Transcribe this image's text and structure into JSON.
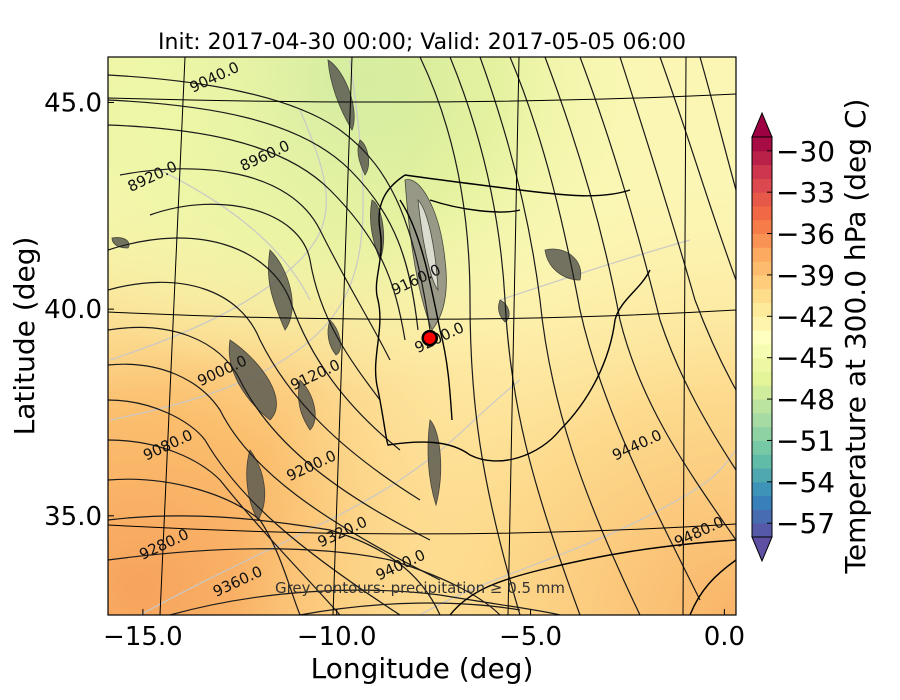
{
  "chart_data": {
    "type": "heatmap",
    "title": "Init: 2017-04-30 00:00; Valid: 2017-05-05 06:00",
    "xlabel": "Longitude (deg)",
    "ylabel": "Latitude (deg)",
    "xlim": [
      -15.9,
      0.3
    ],
    "ylim": [
      32.6,
      46.1
    ],
    "x_ticks": [
      -15.0,
      -10.0,
      -5.0,
      0.0
    ],
    "x_tick_labels": [
      "−15.0",
      "−10.0",
      "−5.0",
      "0.0"
    ],
    "y_ticks": [
      35.0,
      40.0,
      45.0
    ],
    "y_tick_labels": [
      "35.0",
      "40.0",
      "45.0"
    ],
    "colorbar": {
      "label": "Temperature at 300.0 hPa (deg C)",
      "min": -58,
      "max": -29,
      "extend": "both",
      "ticks": [
        -30,
        -33,
        -36,
        -39,
        -42,
        -45,
        -48,
        -51,
        -54,
        -57
      ],
      "tick_labels": [
        "−30",
        "−33",
        "−36",
        "−39",
        "−42",
        "−45",
        "−48",
        "−51",
        "−54",
        "−57"
      ],
      "colors": [
        "#5e4fa2",
        "#3288bd",
        "#66c2a5",
        "#abdda4",
        "#e6f598",
        "#ffffbf",
        "#fee08b",
        "#fdae61",
        "#f46d43",
        "#d53e4f",
        "#9e0142"
      ]
    },
    "contour_labels": [
      {
        "text": "9040.0",
        "lon": -13.1,
        "lat": 45.5
      },
      {
        "text": "8960.0",
        "lon": -11.8,
        "lat": 43.6
      },
      {
        "text": "8920.0",
        "lon": -14.7,
        "lat": 43.1
      },
      {
        "text": "9160.0",
        "lon": -7.9,
        "lat": 40.6
      },
      {
        "text": "9000.0",
        "lon": -12.9,
        "lat": 38.4
      },
      {
        "text": "9120.0",
        "lon": -10.5,
        "lat": 38.3
      },
      {
        "text": "9200.0",
        "lon": -7.3,
        "lat": 39.2
      },
      {
        "text": "9080.0",
        "lon": -14.3,
        "lat": 36.6
      },
      {
        "text": "9200.0",
        "lon": -10.6,
        "lat": 36.1
      },
      {
        "text": "9440.0",
        "lon": -2.2,
        "lat": 36.6
      },
      {
        "text": "9320.0",
        "lon": -9.8,
        "lat": 34.5
      },
      {
        "text": "9280.0",
        "lon": -14.4,
        "lat": 34.2
      },
      {
        "text": "9400.0",
        "lon": -8.3,
        "lat": 33.7
      },
      {
        "text": "9480.0",
        "lon": -0.6,
        "lat": 34.5
      },
      {
        "text": "9360.0",
        "lon": -12.5,
        "lat": 33.3
      }
    ],
    "marker": {
      "lon": -7.6,
      "lat": 39.3,
      "color": "#ff0000"
    },
    "annotation": "Grey contours: precipitation ≥ 0.5 mm"
  }
}
